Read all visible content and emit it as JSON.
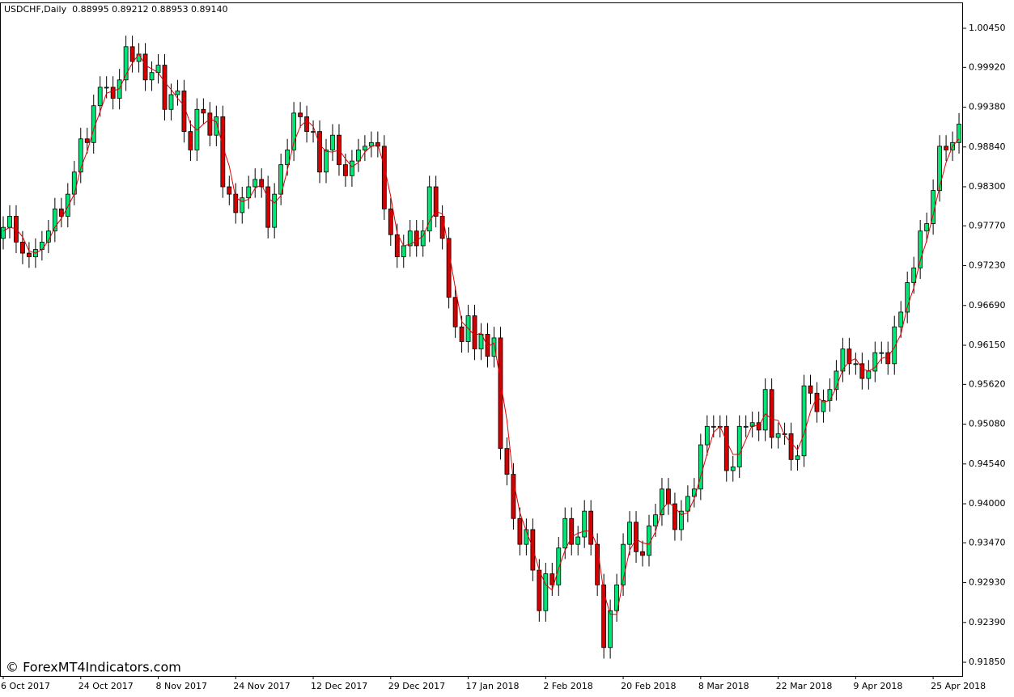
{
  "chart_data": {
    "type": "candlestick",
    "title": "USDCHF,Daily  0.88995 0.89212 0.88953 0.89140",
    "watermark": "© ForexMT4Indicators.com",
    "up_color": "#00e676",
    "down_color": "#d50000",
    "categories": [
      "6 Oct 2017",
      null,
      null,
      null,
      null,
      null,
      null,
      null,
      null,
      null,
      null,
      null,
      "24 Oct 2017",
      null,
      null,
      null,
      null,
      null,
      null,
      null,
      null,
      null,
      null,
      null,
      "8 Nov 2017",
      null,
      null,
      null,
      null,
      null,
      null,
      null,
      null,
      null,
      null,
      null,
      "24 Nov 2017",
      null,
      null,
      null,
      null,
      null,
      null,
      null,
      null,
      null,
      null,
      null,
      "12 Dec 2017",
      null,
      null,
      null,
      null,
      null,
      null,
      null,
      null,
      null,
      null,
      null,
      "29 Dec 2017",
      null,
      null,
      null,
      null,
      null,
      null,
      null,
      null,
      null,
      null,
      null,
      "17 Jan 2018",
      null,
      null,
      null,
      null,
      null,
      null,
      null,
      null,
      null,
      null,
      null,
      "2 Feb 2018",
      null,
      null,
      null,
      null,
      null,
      null,
      null,
      null,
      null,
      null,
      null,
      "20 Feb 2018",
      null,
      null,
      null,
      null,
      null,
      null,
      null,
      null,
      null,
      null,
      null,
      "8 Mar 2018",
      null,
      null,
      null,
      null,
      null,
      null,
      null,
      null,
      null,
      null,
      null,
      "22 Mar 2018",
      null,
      null,
      null,
      null,
      null,
      null,
      null,
      null,
      null,
      null,
      null,
      "9 Apr 2018",
      null,
      null,
      null,
      null,
      null,
      null,
      null,
      null,
      null,
      null,
      null,
      "25 Apr 2018",
      null,
      null,
      null,
      null
    ],
    "open": [
      0.976,
      0.9775,
      0.979,
      0.9755,
      0.974,
      0.9735,
      0.9745,
      0.9755,
      0.977,
      0.98,
      0.979,
      0.982,
      0.985,
      0.9895,
      0.989,
      0.994,
      0.9965,
      0.9965,
      0.995,
      0.9975,
      1.002,
      1.0,
      1.001,
      0.9975,
      0.9985,
      0.9995,
      0.9935,
      0.9955,
      0.996,
      0.9905,
      0.988,
      0.9935,
      0.993,
      0.99,
      0.9925,
      0.983,
      0.982,
      0.9795,
      0.9815,
      0.983,
      0.984,
      0.983,
      0.9775,
      0.982,
      0.986,
      0.988,
      0.993,
      0.9925,
      0.9905,
      0.9905,
      0.985,
      0.988,
      0.99,
      0.986,
      0.9845,
      0.9865,
      0.988,
      0.9885,
      0.989,
      0.9885,
      0.98,
      0.9765,
      0.9735,
      0.975,
      0.977,
      0.975,
      0.977,
      0.983,
      0.979,
      0.976,
      0.968,
      0.964,
      0.962,
      0.9655,
      0.961,
      0.963,
      0.96,
      0.9625,
      0.9475,
      0.944,
      0.938,
      0.9345,
      0.9365,
      0.931,
      0.9255,
      0.9305,
      0.929,
      0.934,
      0.938,
      0.9345,
      0.9355,
      0.939,
      0.9345,
      0.929,
      0.9205,
      0.9255,
      0.929,
      0.9345,
      0.9375,
      0.9335,
      0.933,
      0.937,
      0.9385,
      0.942,
      0.94,
      0.9365,
      0.939,
      0.941,
      0.942,
      0.948,
      0.9505,
      0.9505,
      0.9505,
      0.9445,
      0.945,
      0.9505,
      0.9505,
      0.951,
      0.95,
      0.9555,
      0.949,
      0.9495,
      0.9495,
      0.946,
      0.9465,
      0.956,
      0.955,
      0.9525,
      0.954,
      0.9555,
      0.958,
      0.961,
      0.959,
      0.959,
      0.957,
      0.958,
      0.9605,
      0.9605,
      0.959,
      0.964,
      0.966,
      0.97,
      0.972,
      0.977,
      0.978,
      0.9825,
      0.9885,
      0.988,
      0.989
    ],
    "high": [
      0.979,
      0.9805,
      0.9805,
      0.977,
      0.9755,
      0.976,
      0.977,
      0.9785,
      0.9815,
      0.9815,
      0.9835,
      0.9865,
      0.991,
      0.991,
      0.9955,
      0.998,
      0.998,
      0.998,
      0.999,
      1.0035,
      1.0035,
      1.0025,
      1.0025,
      1.0,
      1.001,
      1.001,
      0.997,
      0.9975,
      0.9975,
      0.992,
      0.995,
      0.995,
      0.9945,
      0.994,
      0.994,
      0.9845,
      0.9835,
      0.983,
      0.9845,
      0.9855,
      0.9855,
      0.9845,
      0.9835,
      0.9875,
      0.9895,
      0.9945,
      0.9945,
      0.994,
      0.992,
      0.992,
      0.9895,
      0.9915,
      0.9915,
      0.9875,
      0.988,
      0.9895,
      0.99,
      0.9905,
      0.9905,
      0.99,
      0.9815,
      0.978,
      0.9765,
      0.9785,
      0.9785,
      0.9785,
      0.9845,
      0.9845,
      0.9805,
      0.9775,
      0.9695,
      0.9655,
      0.967,
      0.967,
      0.9645,
      0.9645,
      0.964,
      0.964,
      0.949,
      0.9455,
      0.9395,
      0.938,
      0.938,
      0.9325,
      0.932,
      0.932,
      0.9355,
      0.9395,
      0.9395,
      0.937,
      0.9405,
      0.9405,
      0.936,
      0.9305,
      0.927,
      0.9305,
      0.936,
      0.939,
      0.939,
      0.935,
      0.9385,
      0.94,
      0.9435,
      0.9435,
      0.9415,
      0.9405,
      0.9425,
      0.9435,
      0.9495,
      0.952,
      0.952,
      0.952,
      0.952,
      0.9465,
      0.952,
      0.952,
      0.9525,
      0.9525,
      0.957,
      0.957,
      0.951,
      0.951,
      0.951,
      0.948,
      0.9575,
      0.9575,
      0.9565,
      0.9555,
      0.957,
      0.9595,
      0.9625,
      0.9625,
      0.9605,
      0.9605,
      0.9595,
      0.962,
      0.962,
      0.962,
      0.9655,
      0.9675,
      0.9715,
      0.9735,
      0.9785,
      0.9795,
      0.984,
      0.99,
      0.99,
      0.9905,
      0.993
    ],
    "low": [
      0.9745,
      0.976,
      0.974,
      0.9725,
      0.972,
      0.972,
      0.973,
      0.974,
      0.9755,
      0.9775,
      0.9775,
      0.9805,
      0.9835,
      0.9875,
      0.9875,
      0.9925,
      0.995,
      0.9935,
      0.9935,
      0.996,
      0.9985,
      0.9985,
      0.996,
      0.996,
      0.997,
      0.992,
      0.992,
      0.994,
      0.989,
      0.9865,
      0.9865,
      0.9915,
      0.9885,
      0.9885,
      0.9815,
      0.9805,
      0.978,
      0.978,
      0.98,
      0.9815,
      0.9815,
      0.976,
      0.976,
      0.9805,
      0.9845,
      0.9865,
      0.991,
      0.989,
      0.989,
      0.9835,
      0.9835,
      0.9865,
      0.9845,
      0.983,
      0.983,
      0.985,
      0.9865,
      0.987,
      0.987,
      0.9785,
      0.975,
      0.972,
      0.972,
      0.9735,
      0.9735,
      0.9735,
      0.9755,
      0.9775,
      0.9745,
      0.9665,
      0.9625,
      0.9605,
      0.9605,
      0.9595,
      0.9595,
      0.9585,
      0.9585,
      0.946,
      0.9425,
      0.9365,
      0.933,
      0.933,
      0.9295,
      0.924,
      0.924,
      0.9275,
      0.9275,
      0.9325,
      0.933,
      0.933,
      0.934,
      0.933,
      0.9275,
      0.919,
      0.919,
      0.924,
      0.9275,
      0.933,
      0.932,
      0.9315,
      0.9315,
      0.9355,
      0.937,
      0.9385,
      0.935,
      0.935,
      0.9375,
      0.9395,
      0.9405,
      0.9465,
      0.949,
      0.949,
      0.943,
      0.943,
      0.9435,
      0.949,
      0.949,
      0.9485,
      0.9485,
      0.9475,
      0.9475,
      0.948,
      0.9445,
      0.9445,
      0.945,
      0.9535,
      0.951,
      0.951,
      0.9525,
      0.954,
      0.9565,
      0.9575,
      0.9575,
      0.9555,
      0.9555,
      0.9565,
      0.959,
      0.9575,
      0.9575,
      0.9625,
      0.9645,
      0.9685,
      0.9705,
      0.9755,
      0.9765,
      0.981,
      0.9865,
      0.9865,
      0.9875
    ],
    "close": [
      0.9775,
      0.979,
      0.9755,
      0.974,
      0.9735,
      0.9745,
      0.9755,
      0.977,
      0.98,
      0.979,
      0.982,
      0.985,
      0.9895,
      0.989,
      0.994,
      0.9965,
      0.9965,
      0.995,
      0.9975,
      1.002,
      1.0,
      1.001,
      0.9975,
      0.9985,
      0.9995,
      0.9935,
      0.9955,
      0.996,
      0.9905,
      0.988,
      0.9935,
      0.993,
      0.99,
      0.9925,
      0.983,
      0.982,
      0.9795,
      0.9815,
      0.983,
      0.984,
      0.983,
      0.9775,
      0.982,
      0.986,
      0.988,
      0.993,
      0.9925,
      0.9905,
      0.9905,
      0.985,
      0.988,
      0.99,
      0.986,
      0.9845,
      0.9865,
      0.988,
      0.9885,
      0.989,
      0.9885,
      0.98,
      0.9765,
      0.9735,
      0.975,
      0.977,
      0.975,
      0.977,
      0.983,
      0.979,
      0.976,
      0.968,
      0.964,
      0.962,
      0.9655,
      0.961,
      0.963,
      0.96,
      0.9625,
      0.9475,
      0.944,
      0.938,
      0.9345,
      0.9365,
      0.931,
      0.9255,
      0.9305,
      0.929,
      0.934,
      0.938,
      0.9345,
      0.9355,
      0.939,
      0.9345,
      0.929,
      0.9205,
      0.9255,
      0.929,
      0.9345,
      0.9375,
      0.9335,
      0.933,
      0.937,
      0.9385,
      0.942,
      0.94,
      0.9365,
      0.939,
      0.941,
      0.942,
      0.948,
      0.9505,
      0.9505,
      0.9505,
      0.9445,
      0.945,
      0.9505,
      0.9505,
      0.951,
      0.95,
      0.9555,
      0.949,
      0.9495,
      0.9495,
      0.946,
      0.9465,
      0.956,
      0.955,
      0.9525,
      0.954,
      0.9555,
      0.958,
      0.961,
      0.959,
      0.959,
      0.957,
      0.958,
      0.9605,
      0.9605,
      0.959,
      0.964,
      0.966,
      0.97,
      0.972,
      0.977,
      0.978,
      0.9825,
      0.9885,
      0.988,
      0.989,
      0.9915
    ],
    "ma": {
      "color": "#e00000",
      "values": [
        0.977,
        0.9775,
        0.9773,
        0.9762,
        0.9743,
        0.974,
        0.9745,
        0.9757,
        0.9775,
        0.9787,
        0.9803,
        0.982,
        0.9855,
        0.9878,
        0.9908,
        0.9932,
        0.9957,
        0.996,
        0.9963,
        0.9982,
        0.9998,
        1.001,
        0.9995,
        0.999,
        0.9985,
        0.9972,
        0.9962,
        0.995,
        0.994,
        0.9915,
        0.9907,
        0.9915,
        0.9922,
        0.9918,
        0.9885,
        0.9858,
        0.9815,
        0.981,
        0.9813,
        0.9828,
        0.9833,
        0.9815,
        0.9808,
        0.9818,
        0.9853,
        0.989,
        0.9912,
        0.992,
        0.9912,
        0.9887,
        0.9878,
        0.9877,
        0.988,
        0.9868,
        0.9857,
        0.9863,
        0.9877,
        0.9885,
        0.9887,
        0.9858,
        0.9817,
        0.9767,
        0.975,
        0.9752,
        0.9757,
        0.9763,
        0.9783,
        0.9797,
        0.9793,
        0.9743,
        0.9693,
        0.9647,
        0.9638,
        0.9628,
        0.9632,
        0.9613,
        0.9618,
        0.9567,
        0.9513,
        0.9432,
        0.9388,
        0.9363,
        0.934,
        0.931,
        0.929,
        0.9283,
        0.9312,
        0.9337,
        0.9355,
        0.936,
        0.9363,
        0.9363,
        0.9342,
        0.928,
        0.925,
        0.925,
        0.9297,
        0.9337,
        0.9352,
        0.9347,
        0.9345,
        0.9362,
        0.9392,
        0.9402,
        0.9395,
        0.9385,
        0.9388,
        0.9407,
        0.9437,
        0.9468,
        0.9497,
        0.9505,
        0.9485,
        0.9467,
        0.9467,
        0.9487,
        0.9507,
        0.9505,
        0.9522,
        0.9515,
        0.9513,
        0.9493,
        0.9483,
        0.9473,
        0.9495,
        0.9525,
        0.9545,
        0.9538,
        0.954,
        0.9558,
        0.9582,
        0.9593,
        0.9597,
        0.9583,
        0.958,
        0.9585,
        0.9597,
        0.96,
        0.9612,
        0.963,
        0.9667,
        0.9693,
        0.973,
        0.9757,
        0.9792,
        0.983,
        0.9863,
        0.9885,
        0.9895
      ]
    },
    "ylim": [
      0.91664,
      1.00801
    ],
    "yticks": [
      {
        "value": 1.0045,
        "label": "1.00450"
      },
      {
        "value": 0.9992,
        "label": "0.99920"
      },
      {
        "value": 0.9938,
        "label": "0.99380"
      },
      {
        "value": 0.9884,
        "label": "0.98840"
      },
      {
        "value": 0.983,
        "label": "0.98300"
      },
      {
        "value": 0.9777,
        "label": "0.97770"
      },
      {
        "value": 0.9723,
        "label": "0.97230"
      },
      {
        "value": 0.9669,
        "label": "0.96690"
      },
      {
        "value": 0.9615,
        "label": "0.96150"
      },
      {
        "value": 0.9562,
        "label": "0.95620"
      },
      {
        "value": 0.9508,
        "label": "0.95080"
      },
      {
        "value": 0.9454,
        "label": "0.94540"
      },
      {
        "value": 0.94,
        "label": "0.94000"
      },
      {
        "value": 0.9347,
        "label": "0.93470"
      },
      {
        "value": 0.9293,
        "label": "0.92930"
      },
      {
        "value": 0.9239,
        "label": "0.92390"
      },
      {
        "value": 0.9185,
        "label": "0.91850"
      }
    ]
  }
}
